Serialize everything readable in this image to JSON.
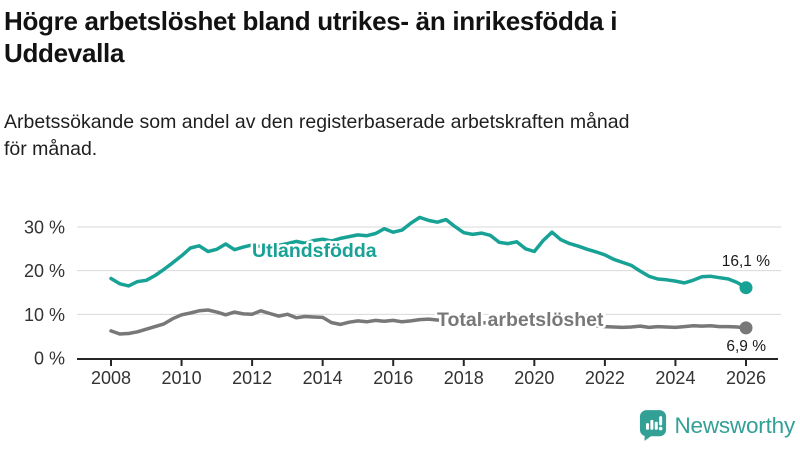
{
  "header": {
    "title_lines": [
      "Högre arbetslöshet bland utrikes- än inrikesfödda i",
      "Uddevalla"
    ],
    "subtitle_lines": [
      "Arbetssökande som andel av den registerbaserade arbetskraften månad",
      "för månad."
    ]
  },
  "chart_data": {
    "type": "line",
    "title": "Högre arbetslöshet bland utrikes- än inrikesfödda i Uddevalla",
    "subtitle": "Arbetssökande som andel av den registerbaserade arbetskraften månad för månad.",
    "xlabel": "",
    "ylabel": "",
    "grid": "horizontal",
    "legend_position": "inline-labels",
    "x_axis": {
      "min": 2008,
      "max": 2026,
      "tick_years": [
        2008,
        2010,
        2012,
        2014,
        2016,
        2018,
        2020,
        2022,
        2024,
        2026
      ],
      "tick_labels": [
        "2008",
        "2010",
        "2012",
        "2014",
        "2016",
        "2018",
        "2020",
        "2022",
        "2024",
        "2026"
      ]
    },
    "y_axis": {
      "min": 0,
      "max": 33,
      "unit": "%",
      "ticks": [
        0,
        10,
        20,
        30
      ],
      "tick_labels": [
        "0 %",
        "10 %",
        "20 %",
        "30 %"
      ]
    },
    "series": [
      {
        "name": "Utlandsfödda",
        "color": "#17a295",
        "end_value": 16.1,
        "end_label": "16,1 %",
        "points": [
          [
            2008.0,
            18.2
          ],
          [
            2008.25,
            17.0
          ],
          [
            2008.5,
            16.5
          ],
          [
            2008.75,
            17.5
          ],
          [
            2009.0,
            17.8
          ],
          [
            2009.25,
            18.9
          ],
          [
            2009.5,
            20.3
          ],
          [
            2009.75,
            21.8
          ],
          [
            2010.0,
            23.4
          ],
          [
            2010.25,
            25.2
          ],
          [
            2010.5,
            25.7
          ],
          [
            2010.75,
            24.4
          ],
          [
            2011.0,
            24.9
          ],
          [
            2011.25,
            26.1
          ],
          [
            2011.5,
            24.8
          ],
          [
            2011.75,
            25.4
          ],
          [
            2012.0,
            25.9
          ],
          [
            2012.25,
            25.5
          ],
          [
            2012.5,
            26.2
          ],
          [
            2012.75,
            25.8
          ],
          [
            2013.0,
            26.2
          ],
          [
            2013.25,
            26.7
          ],
          [
            2013.5,
            26.3
          ],
          [
            2013.75,
            26.9
          ],
          [
            2014.0,
            27.2
          ],
          [
            2014.25,
            26.8
          ],
          [
            2014.5,
            27.4
          ],
          [
            2014.75,
            27.8
          ],
          [
            2015.0,
            28.2
          ],
          [
            2015.25,
            28.0
          ],
          [
            2015.5,
            28.5
          ],
          [
            2015.75,
            29.6
          ],
          [
            2016.0,
            28.8
          ],
          [
            2016.25,
            29.3
          ],
          [
            2016.5,
            30.9
          ],
          [
            2016.75,
            32.2
          ],
          [
            2017.0,
            31.5
          ],
          [
            2017.25,
            31.1
          ],
          [
            2017.5,
            31.7
          ],
          [
            2017.75,
            30.1
          ],
          [
            2018.0,
            28.7
          ],
          [
            2018.25,
            28.3
          ],
          [
            2018.5,
            28.6
          ],
          [
            2018.75,
            28.1
          ],
          [
            2019.0,
            26.5
          ],
          [
            2019.25,
            26.2
          ],
          [
            2019.5,
            26.6
          ],
          [
            2019.75,
            25.0
          ],
          [
            2020.0,
            24.4
          ],
          [
            2020.25,
            26.9
          ],
          [
            2020.5,
            28.8
          ],
          [
            2020.75,
            27.1
          ],
          [
            2021.0,
            26.2
          ],
          [
            2021.25,
            25.6
          ],
          [
            2021.5,
            24.9
          ],
          [
            2021.75,
            24.3
          ],
          [
            2022.0,
            23.6
          ],
          [
            2022.25,
            22.6
          ],
          [
            2022.5,
            21.9
          ],
          [
            2022.75,
            21.2
          ],
          [
            2023.0,
            19.9
          ],
          [
            2023.25,
            18.7
          ],
          [
            2023.5,
            18.1
          ],
          [
            2023.75,
            17.9
          ],
          [
            2024.0,
            17.6
          ],
          [
            2024.25,
            17.2
          ],
          [
            2024.5,
            17.8
          ],
          [
            2024.75,
            18.6
          ],
          [
            2025.0,
            18.7
          ],
          [
            2025.25,
            18.4
          ],
          [
            2025.5,
            18.1
          ],
          [
            2025.75,
            17.3
          ],
          [
            2026.0,
            16.1
          ]
        ]
      },
      {
        "name": "Total arbetslöshet",
        "color": "#787878",
        "end_value": 6.9,
        "end_label": "6,9 %",
        "points": [
          [
            2008.0,
            6.2
          ],
          [
            2008.25,
            5.5
          ],
          [
            2008.5,
            5.6
          ],
          [
            2008.75,
            6.0
          ],
          [
            2009.0,
            6.6
          ],
          [
            2009.25,
            7.2
          ],
          [
            2009.5,
            7.8
          ],
          [
            2009.75,
            9.0
          ],
          [
            2010.0,
            9.9
          ],
          [
            2010.25,
            10.3
          ],
          [
            2010.5,
            10.8
          ],
          [
            2010.75,
            11.0
          ],
          [
            2011.0,
            10.5
          ],
          [
            2011.25,
            9.9
          ],
          [
            2011.5,
            10.5
          ],
          [
            2011.75,
            10.1
          ],
          [
            2012.0,
            10.0
          ],
          [
            2012.25,
            10.8
          ],
          [
            2012.5,
            10.2
          ],
          [
            2012.75,
            9.6
          ],
          [
            2013.0,
            10.0
          ],
          [
            2013.25,
            9.2
          ],
          [
            2013.5,
            9.5
          ],
          [
            2013.75,
            9.4
          ],
          [
            2014.0,
            9.3
          ],
          [
            2014.25,
            8.1
          ],
          [
            2014.5,
            7.7
          ],
          [
            2014.75,
            8.2
          ],
          [
            2015.0,
            8.5
          ],
          [
            2015.25,
            8.3
          ],
          [
            2015.5,
            8.6
          ],
          [
            2015.75,
            8.4
          ],
          [
            2016.0,
            8.6
          ],
          [
            2016.25,
            8.3
          ],
          [
            2016.5,
            8.5
          ],
          [
            2016.75,
            8.8
          ],
          [
            2017.0,
            8.9
          ],
          [
            2017.25,
            8.7
          ],
          [
            2017.5,
            8.6
          ],
          [
            2017.75,
            8.5
          ],
          [
            2018.0,
            8.4
          ],
          [
            2018.25,
            8.2
          ],
          [
            2018.5,
            8.1
          ],
          [
            2018.75,
            8.0
          ],
          [
            2019.0,
            7.9
          ],
          [
            2019.25,
            7.8
          ],
          [
            2019.5,
            7.8
          ],
          [
            2019.75,
            7.7
          ],
          [
            2020.0,
            7.9
          ],
          [
            2020.25,
            8.4
          ],
          [
            2020.5,
            8.8
          ],
          [
            2020.75,
            8.6
          ],
          [
            2021.0,
            8.3
          ],
          [
            2021.25,
            8.0
          ],
          [
            2021.5,
            7.7
          ],
          [
            2021.75,
            7.4
          ],
          [
            2022.0,
            7.2
          ],
          [
            2022.25,
            7.1
          ],
          [
            2022.5,
            7.0
          ],
          [
            2022.75,
            7.1
          ],
          [
            2023.0,
            7.3
          ],
          [
            2023.25,
            7.0
          ],
          [
            2023.5,
            7.2
          ],
          [
            2023.75,
            7.1
          ],
          [
            2024.0,
            7.0
          ],
          [
            2024.25,
            7.2
          ],
          [
            2024.5,
            7.4
          ],
          [
            2024.75,
            7.3
          ],
          [
            2025.0,
            7.4
          ],
          [
            2025.25,
            7.2
          ],
          [
            2025.5,
            7.2
          ],
          [
            2025.75,
            7.1
          ],
          [
            2026.0,
            6.9
          ]
        ]
      }
    ]
  },
  "footer": {
    "brand": "Newsworthy",
    "brand_color": "#33a096",
    "logo_icon": "bar-chart-speech-bubble-icon"
  }
}
